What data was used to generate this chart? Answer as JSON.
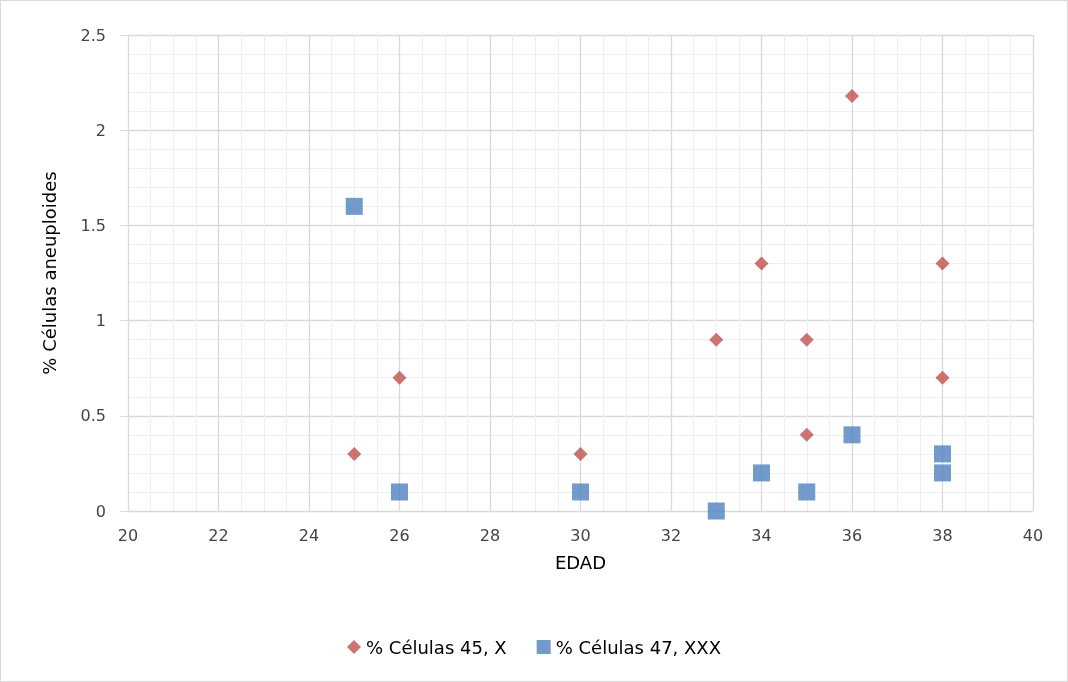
{
  "chart_data": {
    "type": "scatter",
    "xlabel": "EDAD",
    "ylabel": "% Células aneuploides",
    "xlim": [
      20,
      40
    ],
    "xticks": [
      20,
      22,
      24,
      26,
      28,
      30,
      32,
      34,
      36,
      38,
      40
    ],
    "ylim": [
      0,
      2.5
    ],
    "yticks": [
      0,
      0.5,
      1,
      1.5,
      2,
      2.5
    ],
    "grid": true,
    "legend": "bottom",
    "series": [
      {
        "name": "% Células 45, X",
        "color": "#c0504d",
        "marker": "diamond",
        "x": [
          25,
          26,
          30,
          33,
          34,
          35,
          35,
          36,
          38,
          38
        ],
        "values": [
          0.3,
          0.7,
          0.3,
          0.9,
          1.3,
          0.9,
          0.4,
          2.18,
          1.3,
          0.7
        ]
      },
      {
        "name": "% Células 47, XXX",
        "color": "#4f81bd",
        "marker": "square",
        "x": [
          25,
          26,
          30,
          33,
          34,
          35,
          36,
          38,
          38
        ],
        "values": [
          1.6,
          0.1,
          0.1,
          0,
          0.2,
          0.1,
          0.4,
          0.3,
          0.2
        ]
      }
    ]
  }
}
